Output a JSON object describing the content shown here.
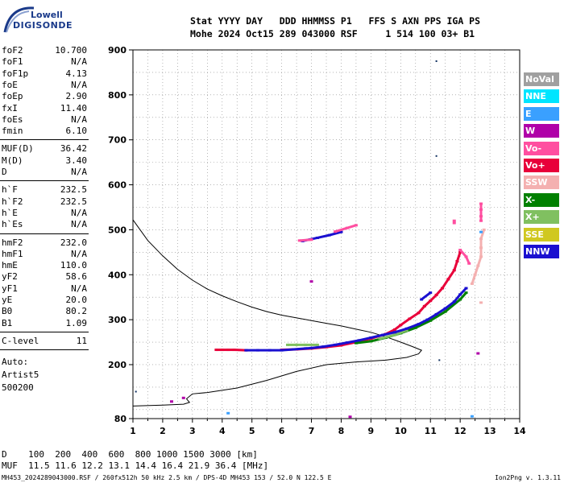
{
  "logo": {
    "line1": "Lowell",
    "line2": "DIGISONDE"
  },
  "header": {
    "columns": "Stat YYYY DAY   DDD HHMMSS P1   FFS S AXN PPS IGA PS",
    "values": "Mohe 2024 Oct15 289 043000 RSF     1 514 100 03+ B1"
  },
  "params_group1": [
    {
      "label": "foF2",
      "value": "10.700"
    },
    {
      "label": "foF1",
      "value": "N/A"
    },
    {
      "label": "foF1p",
      "value": "4.13"
    },
    {
      "label": "foE",
      "value": "N/A"
    },
    {
      "label": "foEp",
      "value": "2.90"
    },
    {
      "label": "fxI",
      "value": "11.40"
    },
    {
      "label": "foEs",
      "value": "N/A"
    },
    {
      "label": "fmin",
      "value": "6.10"
    }
  ],
  "params_group2": [
    {
      "label": "MUF(D)",
      "value": "36.42"
    },
    {
      "label": "M(D)",
      "value": "3.40"
    },
    {
      "label": "D",
      "value": "N/A"
    }
  ],
  "params_group3": [
    {
      "label": "h`F",
      "value": "232.5"
    },
    {
      "label": "h`F2",
      "value": "232.5"
    },
    {
      "label": "h`E",
      "value": "N/A"
    },
    {
      "label": "h`Es",
      "value": "N/A"
    }
  ],
  "params_group4": [
    {
      "label": "hmF2",
      "value": "232.0"
    },
    {
      "label": "hmF1",
      "value": "N/A"
    },
    {
      "label": "hmE",
      "value": "110.0"
    },
    {
      "label": "yF2",
      "value": "58.6"
    },
    {
      "label": "yF1",
      "value": "N/A"
    },
    {
      "label": "yE",
      "value": "20.0"
    },
    {
      "label": "B0",
      "value": "80.2"
    },
    {
      "label": "B1",
      "value": "1.09"
    }
  ],
  "params_group5": [
    {
      "label": "C-level",
      "value": "11"
    }
  ],
  "auto": {
    "line1": "Auto:",
    "line2": "Artist5",
    "line3": "500200"
  },
  "legend": [
    {
      "label": "NoVal",
      "color": "#a0a0a0"
    },
    {
      "label": "NNE",
      "color": "#00e5ff"
    },
    {
      "label": "E",
      "color": "#3aa0ff"
    },
    {
      "label": "W",
      "color": "#b000a8"
    },
    {
      "label": "Vo-",
      "color": "#ff4fa0"
    },
    {
      "label": "Vo+",
      "color": "#e8003a"
    },
    {
      "label": "SSW",
      "color": "#f4b0b0"
    },
    {
      "label": "X-",
      "color": "#008000"
    },
    {
      "label": "X+",
      "color": "#80c060"
    },
    {
      "label": "SSE",
      "color": "#d0c820"
    },
    {
      "label": "NNW",
      "color": "#1a10d0"
    }
  ],
  "bottom": {
    "d_row": "D    100  200  400  600  800 1000 1500 3000 [km]",
    "muf_row": "MUF  11.5 11.6 12.2 13.1 14.4 16.4 21.9 36.4 [MHz]"
  },
  "footer": "MH453_2024289043000.RSF / 260fx512h 50 kHz 2.5 km / DPS-4D MH453 153 / 52.0 N 122.5 E",
  "version": "Ion2Png v. 1.3.11",
  "chart_data": {
    "type": "scatter",
    "xlim": [
      1,
      14
    ],
    "ylim": [
      80,
      900
    ],
    "x_ticks": [
      1,
      2,
      3,
      4,
      5,
      6,
      7,
      8,
      9,
      10,
      11,
      12,
      13,
      14
    ],
    "y_ticks": [
      80,
      200,
      300,
      400,
      500,
      600,
      700,
      800,
      900
    ],
    "grid": true,
    "profile": [
      [
        1.0,
        522
      ],
      [
        1.5,
        476
      ],
      [
        2.0,
        442
      ],
      [
        2.5,
        412
      ],
      [
        3.0,
        388
      ],
      [
        3.5,
        368
      ],
      [
        4.0,
        353
      ],
      [
        4.5,
        340
      ],
      [
        5.0,
        328
      ],
      [
        5.5,
        318
      ],
      [
        6.0,
        310
      ],
      [
        6.5,
        304
      ],
      [
        7.0,
        298
      ],
      [
        7.5,
        292
      ],
      [
        8.0,
        286
      ],
      [
        8.5,
        279
      ],
      [
        9.0,
        272
      ],
      [
        9.5,
        262
      ],
      [
        10.0,
        250
      ],
      [
        10.4,
        240
      ],
      [
        10.7,
        232
      ],
      [
        10.6,
        224
      ],
      [
        10.2,
        216
      ],
      [
        9.5,
        210
      ],
      [
        8.5,
        206
      ],
      [
        7.5,
        200
      ],
      [
        6.5,
        185
      ],
      [
        5.5,
        165
      ],
      [
        4.5,
        148
      ],
      [
        3.5,
        138
      ],
      [
        3.0,
        135
      ],
      [
        2.8,
        124
      ],
      [
        2.9,
        116
      ],
      [
        2.7,
        112
      ],
      [
        2.0,
        110
      ],
      [
        1.0,
        108
      ]
    ],
    "series": [
      {
        "name": "Vo+",
        "color_ref": 5,
        "points": [
          [
            3.8,
            233
          ],
          [
            4.0,
            233
          ],
          [
            4.2,
            233
          ],
          [
            4.4,
            233
          ],
          [
            4.8,
            232
          ],
          [
            6.0,
            233
          ],
          [
            6.5,
            234
          ],
          [
            7.0,
            236
          ],
          [
            7.5,
            239
          ],
          [
            8.0,
            243
          ],
          [
            8.5,
            250
          ],
          [
            9.0,
            258
          ],
          [
            9.5,
            268
          ],
          [
            9.8,
            278
          ],
          [
            10.0,
            288
          ],
          [
            10.3,
            302
          ],
          [
            10.6,
            315
          ],
          [
            10.8,
            330
          ],
          [
            11.0,
            342
          ],
          [
            11.2,
            355
          ],
          [
            11.4,
            370
          ],
          [
            11.6,
            390
          ],
          [
            11.8,
            410
          ],
          [
            11.9,
            430
          ],
          [
            12.0,
            450
          ]
        ]
      },
      {
        "name": "X-",
        "color_ref": 7,
        "points": [
          [
            8.5,
            248
          ],
          [
            9.0,
            252
          ],
          [
            9.5,
            260
          ],
          [
            10.0,
            270
          ],
          [
            10.5,
            282
          ],
          [
            11.0,
            298
          ],
          [
            11.5,
            318
          ],
          [
            12.0,
            345
          ],
          [
            12.2,
            360
          ]
        ]
      },
      {
        "name": "X+",
        "color_ref": 8,
        "points": [
          [
            6.2,
            244
          ],
          [
            6.5,
            244
          ],
          [
            6.8,
            244
          ],
          [
            7.2,
            244
          ],
          [
            9.3,
            258
          ],
          [
            9.8,
            266
          ],
          [
            10.2,
            276
          ]
        ]
      },
      {
        "name": "NNW",
        "color_ref": 10,
        "points": [
          [
            4.8,
            232
          ],
          [
            5.2,
            232
          ],
          [
            5.6,
            232
          ],
          [
            6.0,
            232
          ],
          [
            6.4,
            234
          ],
          [
            6.8,
            236
          ],
          [
            7.0,
            237
          ],
          [
            7.4,
            240
          ],
          [
            7.8,
            244
          ],
          [
            8.2,
            249
          ],
          [
            8.6,
            254
          ],
          [
            9.0,
            260
          ],
          [
            9.4,
            266
          ],
          [
            9.8,
            272
          ],
          [
            10.2,
            280
          ],
          [
            10.6,
            290
          ],
          [
            10.9,
            300
          ],
          [
            11.2,
            312
          ],
          [
            11.5,
            325
          ],
          [
            11.8,
            340
          ],
          [
            12.0,
            356
          ],
          [
            12.2,
            370
          ],
          [
            10.7,
            345
          ],
          [
            11.0,
            360
          ],
          [
            6.7,
            475
          ],
          [
            7.2,
            482
          ],
          [
            7.6,
            488
          ],
          [
            8.0,
            495
          ]
        ]
      },
      {
        "name": "Vo-",
        "color_ref": 4,
        "points": [
          [
            6.6,
            476
          ],
          [
            7.0,
            478
          ],
          [
            7.8,
            496
          ],
          [
            8.2,
            504
          ],
          [
            8.5,
            510
          ],
          [
            11.8,
            515
          ],
          [
            11.8,
            520
          ],
          [
            12.7,
            520
          ],
          [
            12.7,
            530
          ],
          [
            12.7,
            545
          ],
          [
            12.7,
            558
          ],
          [
            12.3,
            425
          ],
          [
            12.2,
            440
          ],
          [
            12.0,
            455
          ]
        ]
      },
      {
        "name": "SSW",
        "color_ref": 6,
        "points": [
          [
            12.4,
            380
          ],
          [
            12.5,
            400
          ],
          [
            12.6,
            420
          ],
          [
            12.7,
            440
          ],
          [
            12.7,
            460
          ],
          [
            12.7,
            480
          ],
          [
            12.8,
            500
          ],
          [
            12.7,
            338
          ]
        ]
      },
      {
        "name": "E",
        "color_ref": 2,
        "points": [
          [
            4.2,
            92
          ],
          [
            12.7,
            495
          ],
          [
            12.4,
            85
          ]
        ]
      },
      {
        "name": "W",
        "color_ref": 3,
        "points": [
          [
            2.7,
            126
          ],
          [
            8.3,
            84
          ],
          [
            7.0,
            385
          ],
          [
            2.3,
            118
          ],
          [
            12.6,
            225
          ]
        ]
      }
    ],
    "outliers": [
      [
        11.2,
        875
      ],
      [
        11.2,
        664
      ],
      [
        11.3,
        210
      ],
      [
        1.1,
        140
      ]
    ]
  }
}
